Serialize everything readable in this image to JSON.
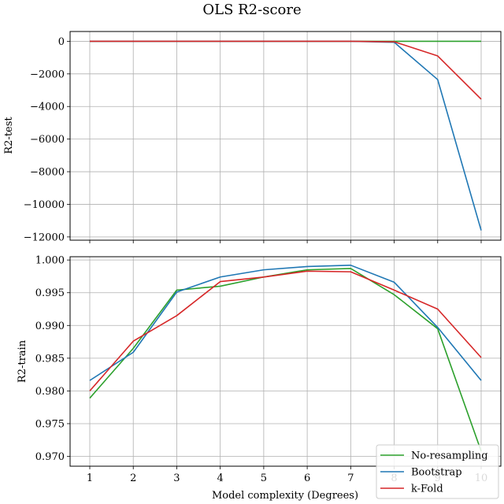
{
  "chart_data": {
    "type": "line",
    "title": "OLS R2-score",
    "xlabel": "Model complexity (Degrees)",
    "x": [
      1,
      2,
      3,
      4,
      5,
      6,
      7,
      8,
      9,
      10
    ],
    "xticks": [
      "1",
      "2",
      "3",
      "4",
      "5",
      "6",
      "7",
      "8",
      "9",
      "10"
    ],
    "legend": {
      "location": "bottom-right",
      "entries": [
        {
          "name": "No-resampling",
          "color": "#2ca02c"
        },
        {
          "name": "Bootstrap",
          "color": "#1f77b4"
        },
        {
          "name": "k-Fold",
          "color": "#d62728"
        }
      ]
    },
    "panels": [
      {
        "id": "test",
        "ylabel": "R2-test",
        "ylim": [
          -12200,
          600
        ],
        "yticks": [
          0,
          -2000,
          -4000,
          -6000,
          -8000,
          -10000,
          -12000
        ],
        "ytick_labels": [
          "0",
          "−2000",
          "−4000",
          "−6000",
          "−8000",
          "−10000",
          "−12000"
        ],
        "grid": true,
        "series": [
          {
            "name": "No-resampling",
            "color": "#2ca02c",
            "values": [
              0.98,
              0.99,
              0.99,
              0.99,
              0.99,
              0.99,
              0.99,
              0.99,
              0.99,
              0.97
            ]
          },
          {
            "name": "Bootstrap",
            "color": "#1f77b4",
            "values": [
              0.98,
              0.98,
              0.99,
              0.99,
              0.99,
              0.99,
              0.99,
              -60,
              -2350,
              -11600
            ]
          },
          {
            "name": "k-Fold",
            "color": "#d62728",
            "values": [
              0.98,
              0.98,
              0.98,
              0.98,
              0.98,
              0.98,
              0.98,
              -30,
              -900,
              -3550
            ]
          }
        ]
      },
      {
        "id": "train",
        "ylabel": "R2-train",
        "ylim": [
          0.9685,
          1.0005
        ],
        "yticks": [
          1.0,
          0.995,
          0.99,
          0.985,
          0.98,
          0.975,
          0.97
        ],
        "ytick_labels": [
          "1.000",
          "0.995",
          "0.990",
          "0.985",
          "0.980",
          "0.975",
          "0.970"
        ],
        "grid": true,
        "series": [
          {
            "name": "No-resampling",
            "color": "#2ca02c",
            "values": [
              0.9789,
              0.9865,
              0.9954,
              0.996,
              0.9974,
              0.9985,
              0.9987,
              0.9947,
              0.9895,
              0.9708
            ]
          },
          {
            "name": "Bootstrap",
            "color": "#1f77b4",
            "values": [
              0.9816,
              0.9859,
              0.9951,
              0.9974,
              0.9985,
              0.999,
              0.9992,
              0.9966,
              0.9897,
              0.9816
            ]
          },
          {
            "name": "k-Fold",
            "color": "#d62728",
            "values": [
              0.98,
              0.9876,
              0.9915,
              0.9967,
              0.9974,
              0.9983,
              0.9982,
              0.9954,
              0.9925,
              0.9851
            ]
          }
        ]
      }
    ]
  }
}
